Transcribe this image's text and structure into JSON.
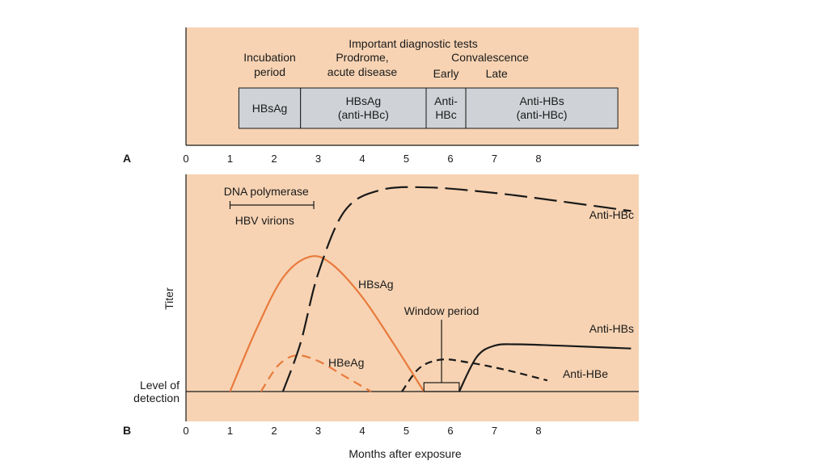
{
  "chart_data": [
    {
      "panel": "A",
      "type": "timeline",
      "title": "Important diagnostic tests",
      "phases": [
        {
          "label_lines": [
            "Incubation",
            "period"
          ],
          "center_month": 1.9
        },
        {
          "label_lines": [
            "Prodrome,",
            "acute disease"
          ],
          "center_month": 4.0
        },
        {
          "label_lines": [
            "Convalescence"
          ],
          "center_month": 6.9
        },
        {
          "label_lines": [
            "Early"
          ],
          "center_month": 5.9
        },
        {
          "label_lines": [
            "Late"
          ],
          "center_month": 7.05
        }
      ],
      "boxes": [
        {
          "start": 1.2,
          "end": 2.6,
          "lines": [
            "HBsAg"
          ]
        },
        {
          "start": 2.6,
          "end": 5.45,
          "lines": [
            "HBsAg",
            "(anti-HBc)"
          ]
        },
        {
          "start": 5.45,
          "end": 6.35,
          "lines": [
            "Anti-",
            "HBc"
          ]
        },
        {
          "start": 6.35,
          "end": 9.8,
          "lines": [
            "Anti-HBs",
            "(anti-HBc)"
          ]
        }
      ],
      "xticks": [
        "0",
        "1",
        "2",
        "3",
        "4",
        "5",
        "6",
        "7",
        "8"
      ]
    },
    {
      "panel": "B",
      "type": "line",
      "xlabel": "Months after exposure",
      "ylabel": "Titer",
      "xticks": [
        "0",
        "1",
        "2",
        "3",
        "4",
        "5",
        "6",
        "7",
        "8"
      ],
      "baseline_label_lines": [
        "Level of",
        "detection"
      ],
      "series": [
        {
          "name": "HBsAg",
          "color": "#e87a3c",
          "dash": "solid",
          "points": [
            [
              1.0,
              0
            ],
            [
              1.6,
              0.45
            ],
            [
              2.2,
              0.82
            ],
            [
              2.8,
              0.97
            ],
            [
              3.3,
              0.92
            ],
            [
              4.0,
              0.68
            ],
            [
              4.7,
              0.35
            ],
            [
              5.4,
              0
            ]
          ]
        },
        {
          "name": "HBeAg",
          "color": "#e87a3c",
          "dash": "medium",
          "points": [
            [
              1.7,
              0
            ],
            [
              2.1,
              0.19
            ],
            [
              2.5,
              0.26
            ],
            [
              3.0,
              0.22
            ],
            [
              3.6,
              0.11
            ],
            [
              4.2,
              0
            ]
          ]
        },
        {
          "name": "Anti-HBc",
          "color": "#1a1a1a",
          "dash": "long",
          "points": [
            [
              2.2,
              0
            ],
            [
              2.6,
              0.35
            ],
            [
              3.0,
              0.85
            ],
            [
              3.6,
              1.3
            ],
            [
              4.4,
              1.45
            ],
            [
              5.5,
              1.47
            ],
            [
              7.0,
              1.43
            ],
            [
              8.5,
              1.37
            ],
            [
              10.1,
              1.3
            ]
          ]
        },
        {
          "name": "Anti-HBs",
          "color": "#1a1a1a",
          "dash": "solid",
          "points": [
            [
              6.2,
              0
            ],
            [
              6.6,
              0.25
            ],
            [
              7.0,
              0.33
            ],
            [
              7.5,
              0.34
            ],
            [
              8.5,
              0.33
            ],
            [
              10.1,
              0.31
            ]
          ]
        },
        {
          "name": "Anti-HBe",
          "color": "#1a1a1a",
          "dash": "short",
          "points": [
            [
              4.9,
              0
            ],
            [
              5.3,
              0.17
            ],
            [
              5.8,
              0.23
            ],
            [
              6.4,
              0.21
            ],
            [
              7.2,
              0.16
            ],
            [
              8.2,
              0.08
            ]
          ]
        }
      ],
      "annotations": {
        "dna_polymerase": {
          "label": "DNA polymerase",
          "start": 1.0,
          "end": 2.9
        },
        "hbv_virions": {
          "label": "HBV virions"
        },
        "window_period": {
          "label": "Window period",
          "start": 5.4,
          "end": 6.2
        }
      }
    }
  ],
  "labels": {
    "panel_a": "A",
    "panel_b": "B"
  },
  "colors": {
    "background": "#f7d3b3",
    "box_fill": "#cfd3d7",
    "hbsag": "#e87a3c",
    "ink": "#1a1a1a"
  }
}
